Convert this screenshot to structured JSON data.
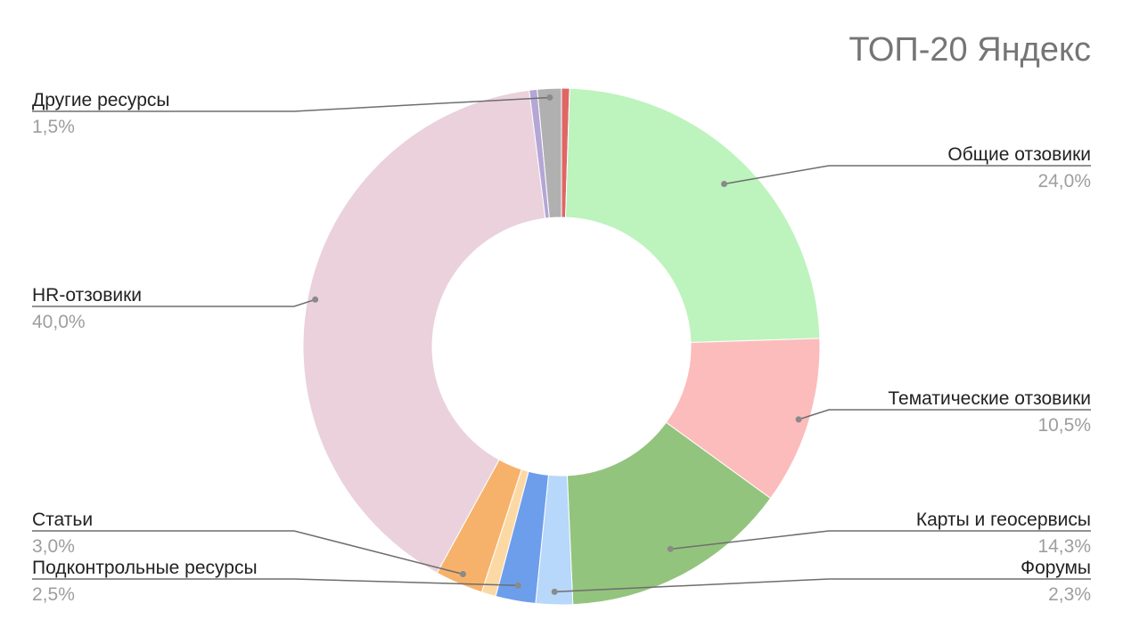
{
  "chart_data": {
    "type": "pie",
    "donut": true,
    "title": "ТОП-20 Яндекс",
    "slices": [
      {
        "label": "",
        "value": 0.5,
        "value_label": "",
        "color": "#e06666"
      },
      {
        "label": "Общие отзовики",
        "value": 24.0,
        "value_label": "24,0%",
        "color": "#bdf3bd"
      },
      {
        "label": "Тематические отзовики",
        "value": 10.5,
        "value_label": "10,5%",
        "color": "#fcbcbc"
      },
      {
        "label": "Карты и геосервисы",
        "value": 14.3,
        "value_label": "14,3%",
        "color": "#93c47d"
      },
      {
        "label": "Форумы",
        "value": 2.3,
        "value_label": "2,3%",
        "color": "#b7d7fb"
      },
      {
        "label": "Подконтрольные ресурсы",
        "value": 2.5,
        "value_label": "2,5%",
        "color": "#6d9eeb"
      },
      {
        "label": "",
        "value": 0.9,
        "value_label": "",
        "color": "#fcd9a4"
      },
      {
        "label": "Статьи",
        "value": 3.0,
        "value_label": "3,0%",
        "color": "#f6b26b"
      },
      {
        "label": "HR-отзовики",
        "value": 40.0,
        "value_label": "40,0%",
        "color": "#ead1dc"
      },
      {
        "label": "",
        "value": 0.5,
        "value_label": "",
        "color": "#b4a7d6"
      },
      {
        "label": "Другие ресурсы",
        "value": 1.5,
        "value_label": "1,5%",
        "color": "#b0b0b0"
      }
    ],
    "legend_position": "none"
  }
}
